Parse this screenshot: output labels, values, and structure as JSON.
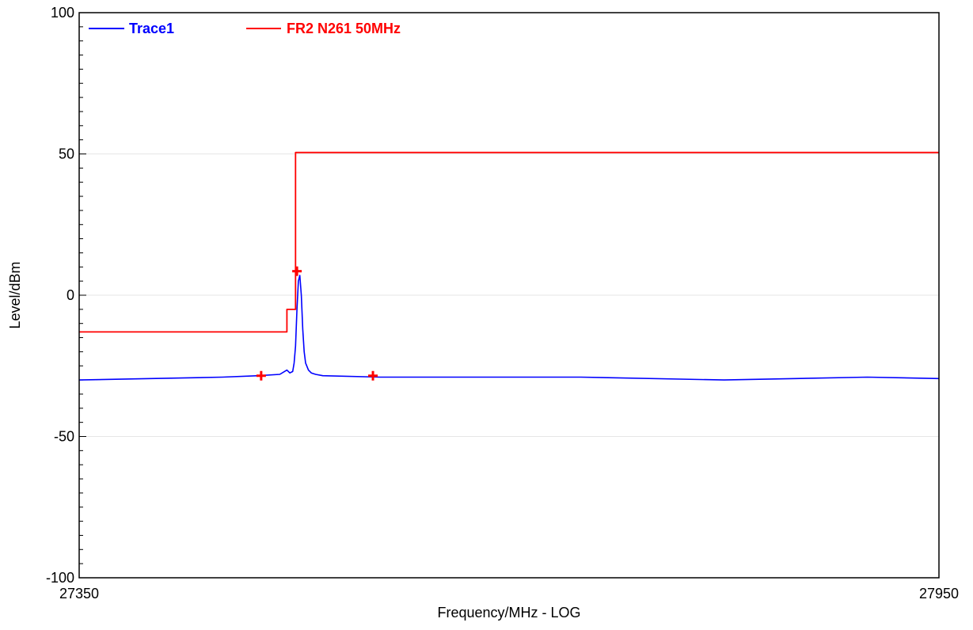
{
  "chart_data": {
    "type": "line",
    "title": "",
    "xlabel": "Frequency/MHz - LOG",
    "ylabel": "Level/dBm",
    "xlim": [
      27350,
      27950
    ],
    "ylim": [
      -100,
      100
    ],
    "x_scale": "linear",
    "x_tick_labels": [
      "27350",
      "27950"
    ],
    "y_ticks": [
      100,
      50,
      0,
      -50,
      -100
    ],
    "y_tick_labels": [
      "100",
      "50",
      "0",
      "-50",
      "-100"
    ],
    "grid": "horizontal",
    "legend_position": "top-left",
    "series": [
      {
        "name": "Trace1",
        "color": "#0000ff",
        "x": [
          27350,
          27400,
          27450,
          27475,
          27490,
          27495,
          27497,
          27499,
          27500,
          27501,
          27502,
          27503,
          27504,
          27505,
          27506,
          27507,
          27508,
          27510,
          27512,
          27515,
          27520,
          27560,
          27600,
          27700,
          27800,
          27850,
          27900,
          27950
        ],
        "values": [
          -30,
          -29.5,
          -29,
          -28.5,
          -28,
          -26.5,
          -27.5,
          -27,
          -24,
          -18,
          -5,
          5,
          7,
          0,
          -12,
          -20,
          -24,
          -26.5,
          -27.5,
          -28,
          -28.5,
          -29,
          -29,
          -29,
          -30,
          -29.5,
          -29,
          -29.5
        ]
      },
      {
        "name": "FR2 N261 50MHz",
        "color": "#ff0000",
        "step": true,
        "x": [
          27350,
          27495,
          27495,
          27501,
          27501,
          27950
        ],
        "values": [
          -13,
          -13,
          -5,
          -5,
          50.5,
          50.5
        ]
      }
    ],
    "markers": [
      {
        "x": 27477,
        "y": -28.5
      },
      {
        "x": 27502,
        "y": 8.5
      },
      {
        "x": 27555,
        "y": -28.5
      }
    ]
  }
}
